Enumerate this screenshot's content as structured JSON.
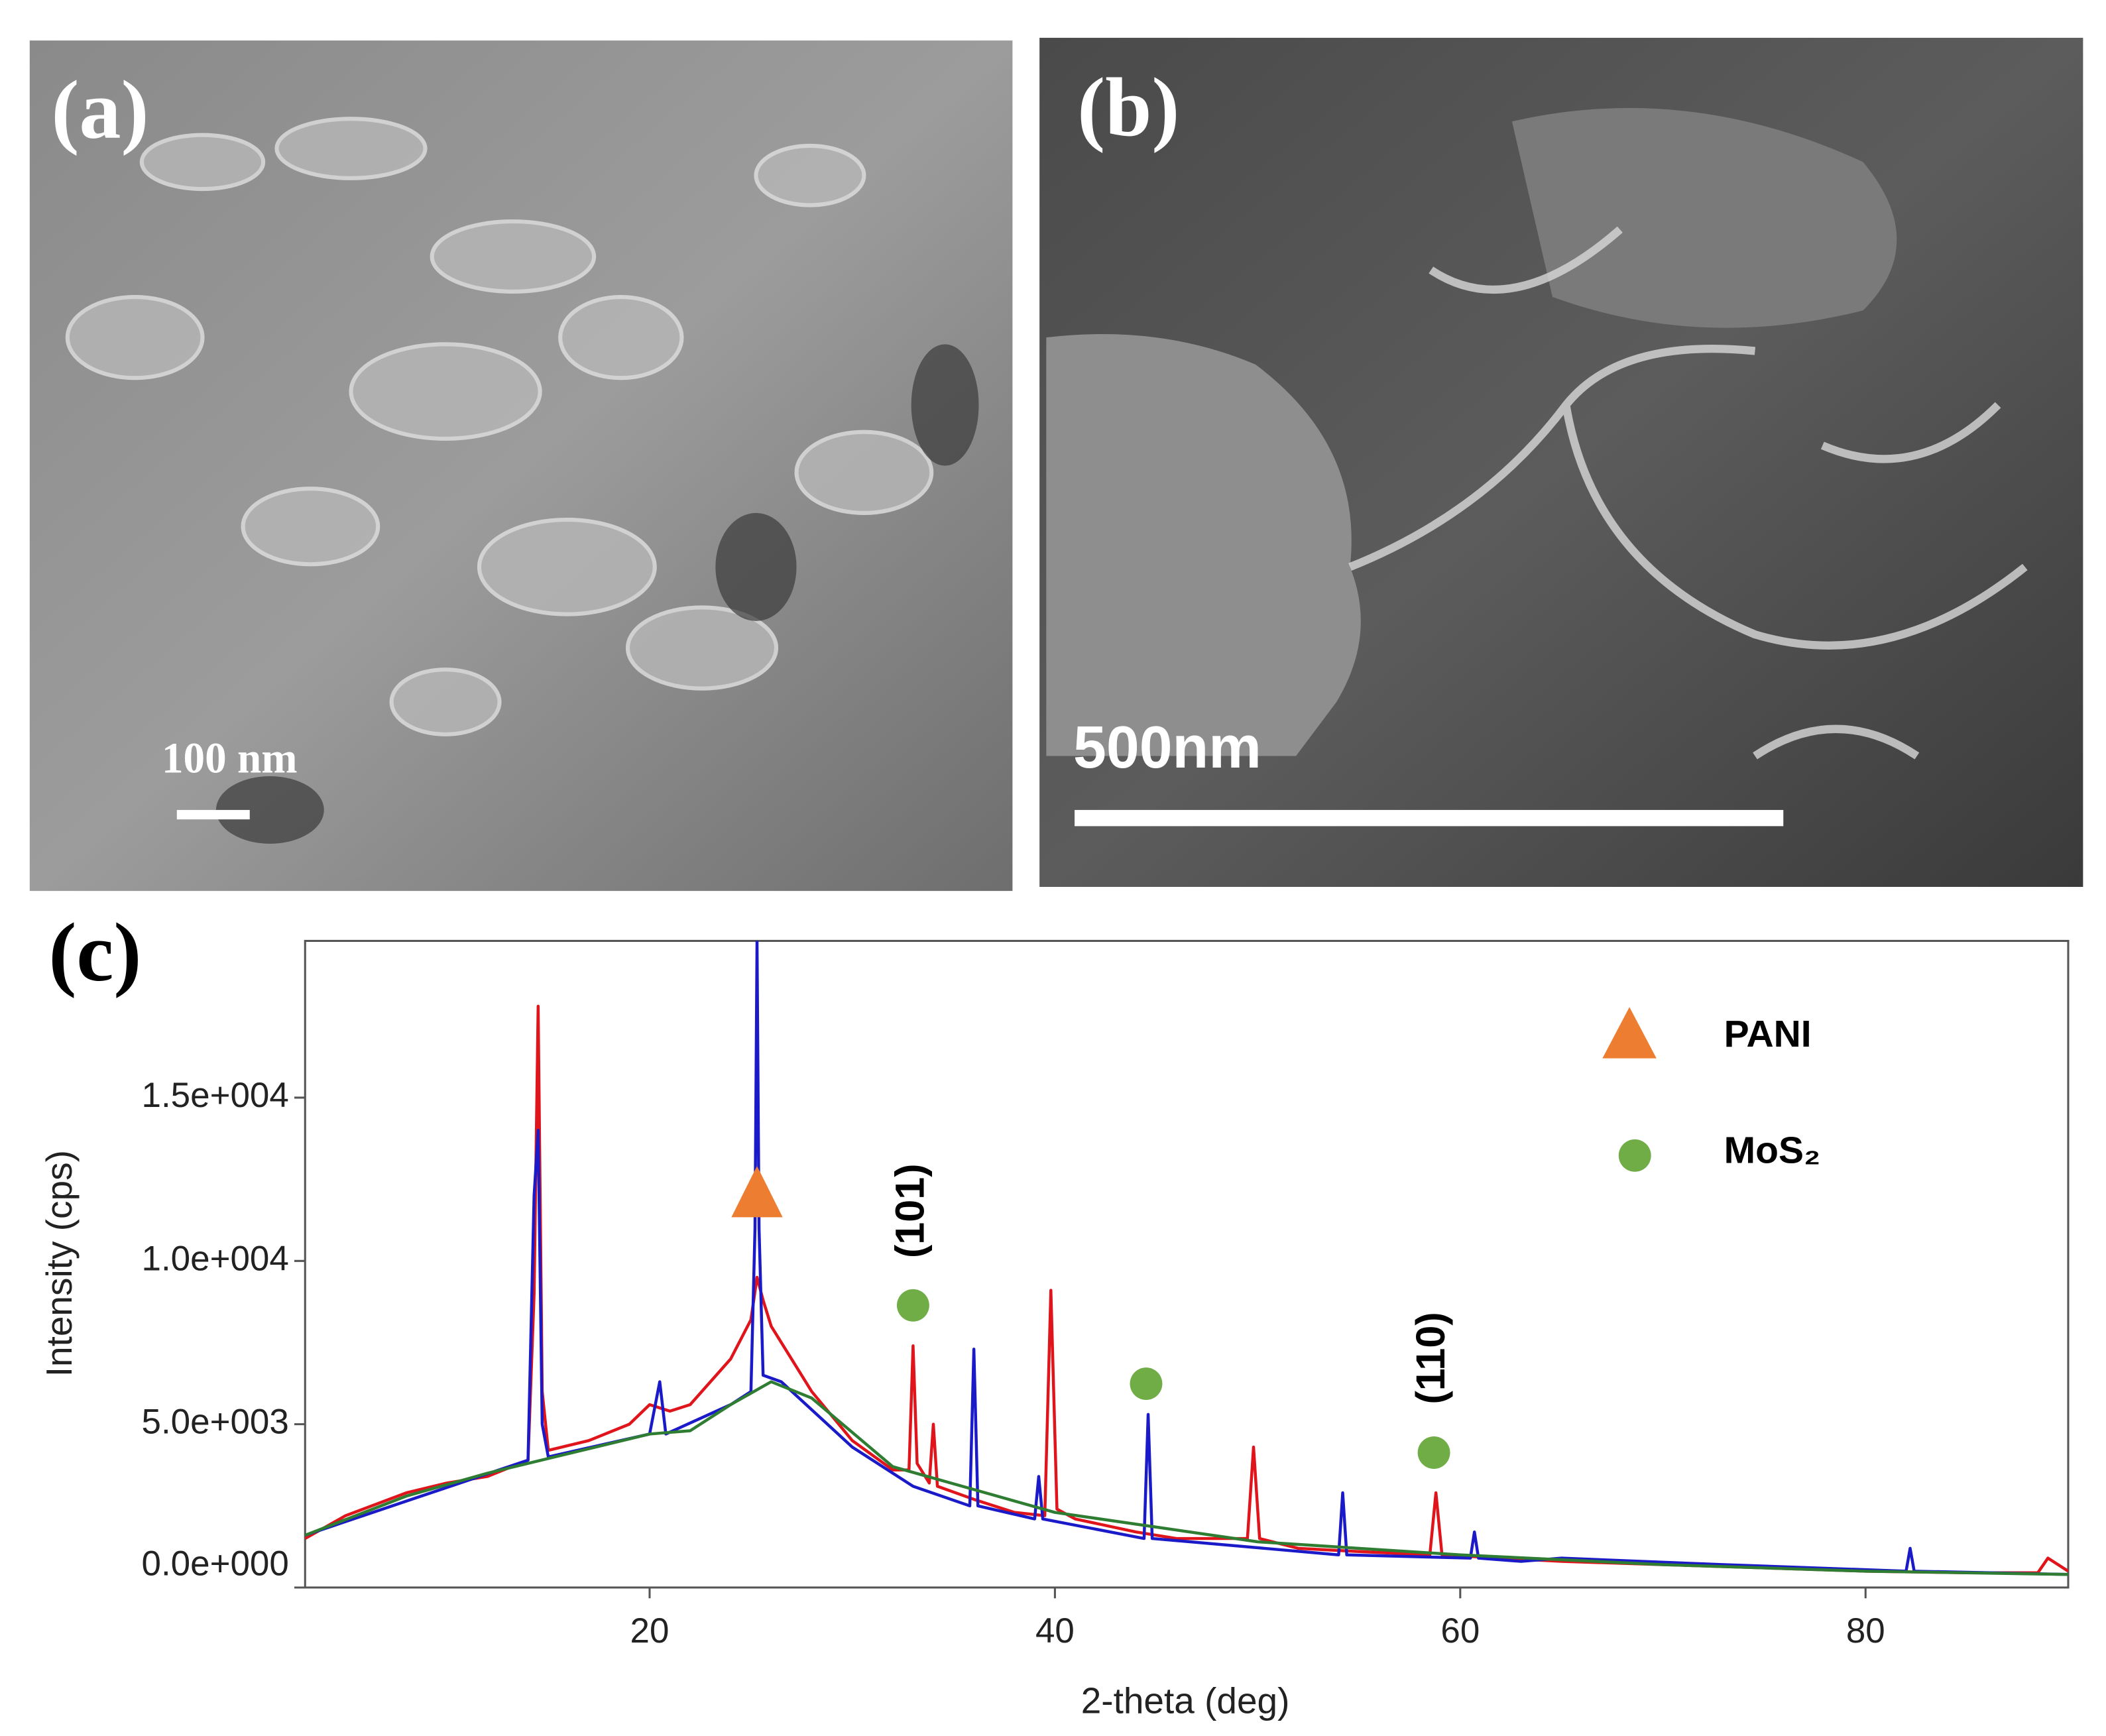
{
  "panels": [
    {
      "label": "(a)",
      "scale_bar": "100 nm"
    },
    {
      "label": "(b)",
      "scale_bar": "500nm"
    }
  ],
  "chart_data": {
    "type": "line",
    "label": "(c)",
    "x_label": "2-theta (deg)",
    "y_label": "Intensity (cps)",
    "xlim": [
      3,
      90
    ],
    "ylim": [
      0,
      19800
    ],
    "xticks": [
      20,
      40,
      60,
      80
    ],
    "yticks": [
      {
        "value": 0,
        "label": "0.0e+000"
      },
      {
        "value": 5000,
        "label": "5.0e+003"
      },
      {
        "value": 10000,
        "label": "1.0e+004"
      },
      {
        "value": 15000,
        "label": "1.5e+004"
      }
    ],
    "legend": "upper right",
    "series": [
      {
        "color": "#e0151b",
        "x": [
          3,
          5,
          8,
          10,
          12,
          14,
          14.3,
          14.5,
          14.7,
          15,
          17,
          19,
          20,
          20.5,
          21,
          22,
          24,
          25,
          25.3,
          25.6,
          26,
          27,
          28,
          30,
          32,
          32.8,
          33,
          33.2,
          33.8,
          34,
          34.2,
          36,
          38,
          39.5,
          39.8,
          40.1,
          41,
          44,
          46,
          49.5,
          49.8,
          50.1,
          52,
          55,
          58.5,
          58.8,
          59.1,
          62,
          65,
          70,
          75,
          80,
          85,
          88.5,
          89,
          90
        ],
        "values": [
          1500,
          2200,
          2900,
          3200,
          3400,
          3900,
          9000,
          17800,
          6000,
          4200,
          4500,
          5000,
          5600,
          5500,
          5400,
          5600,
          7000,
          8200,
          9500,
          8800,
          8000,
          7000,
          6000,
          4500,
          3600,
          3600,
          7400,
          3800,
          3200,
          5000,
          3100,
          2700,
          2300,
          2200,
          9100,
          2400,
          2100,
          1700,
          1500,
          1500,
          4300,
          1500,
          1200,
          1100,
          1000,
          2900,
          1000,
          900,
          800,
          700,
          600,
          500,
          450,
          450,
          900,
          500
        ]
      },
      {
        "color": "#1a1ac8",
        "x": [
          3,
          14,
          14.3,
          14.5,
          14.7,
          15,
          20,
          20.5,
          20.8,
          24,
          25,
          25.2,
          25.3,
          25.4,
          25.6,
          26.5,
          30,
          33,
          35.8,
          36,
          36.2,
          39,
          39.2,
          39.4,
          44.4,
          44.6,
          44.8,
          54,
          54.2,
          54.4,
          60.5,
          60.7,
          60.9,
          63,
          65,
          73,
          82,
          82.2,
          82.4,
          90
        ],
        "values": [
          1600,
          3900,
          12000,
          14000,
          5000,
          4000,
          4700,
          6300,
          4700,
          5600,
          6000,
          11000,
          19800,
          11000,
          6500,
          6300,
          4300,
          3100,
          2500,
          7300,
          2500,
          2100,
          3400,
          2100,
          1500,
          5300,
          1500,
          1000,
          2900,
          1000,
          900,
          1700,
          900,
          800,
          900,
          700,
          500,
          1200,
          500,
          400
        ]
      },
      {
        "color": "#2e7d32",
        "x": [
          3,
          8,
          12,
          16,
          20,
          22,
          24,
          26,
          28,
          32,
          40,
          50,
          60,
          70,
          80,
          90
        ],
        "values": [
          1600,
          2800,
          3500,
          4100,
          4700,
          4800,
          5600,
          6300,
          5800,
          3700,
          2300,
          1400,
          1000,
          700,
          500,
          400
        ]
      },
      {
        "name": "PANI",
        "color": "#ed7d31",
        "marker": "triangle",
        "x": [
          25.3
        ],
        "values": [
          12000
        ]
      },
      {
        "name": "MoS₂",
        "color": "#70ad47",
        "marker": "circle",
        "x": [
          33,
          44.5,
          58.7
        ],
        "values": [
          8640,
          6240,
          4130
        ],
        "point_labels": [
          "(101)",
          null,
          "(110)"
        ]
      }
    ]
  }
}
